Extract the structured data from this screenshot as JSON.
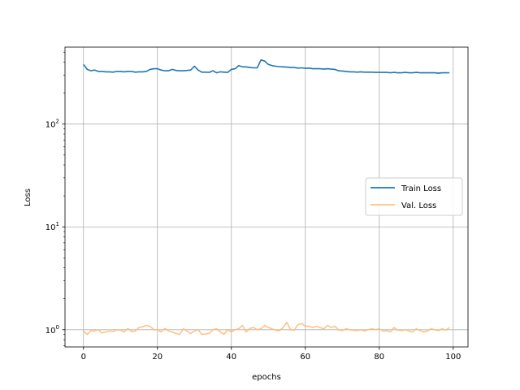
{
  "chart_data": {
    "type": "line",
    "title": "",
    "xlabel": "epochs",
    "ylabel": "Loss",
    "yscale": "log",
    "xlim": [
      -5,
      104
    ],
    "ylim": [
      0.68,
      560
    ],
    "grid": true,
    "legend_position": "center-right",
    "x_ticks": [
      0,
      20,
      40,
      60,
      80,
      100
    ],
    "x_tick_labels": [
      "0",
      "20",
      "40",
      "60",
      "80",
      "100"
    ],
    "y_ticks": [
      1,
      10,
      100
    ],
    "y_tick_labels": [
      {
        "base": "10",
        "exp": "0"
      },
      {
        "base": "10",
        "exp": "1"
      },
      {
        "base": "10",
        "exp": "2"
      }
    ],
    "series": [
      {
        "name": "Train Loss",
        "color": "#1f77b4",
        "opacity": 1,
        "values": [
          380,
          340,
          330,
          335,
          325,
          325,
          322,
          322,
          320,
          325,
          325,
          322,
          325,
          325,
          320,
          322,
          322,
          325,
          340,
          345,
          345,
          335,
          330,
          330,
          340,
          332,
          330,
          330,
          332,
          335,
          365,
          335,
          320,
          320,
          318,
          330,
          315,
          322,
          320,
          318,
          340,
          345,
          370,
          360,
          360,
          355,
          352,
          352,
          420,
          410,
          380,
          370,
          365,
          362,
          360,
          358,
          355,
          355,
          350,
          352,
          348,
          350,
          345,
          345,
          345,
          342,
          345,
          342,
          340,
          330,
          328,
          325,
          322,
          322,
          320,
          322,
          320,
          320,
          320,
          318,
          318,
          318,
          318,
          315,
          318,
          315,
          315,
          318,
          315,
          315,
          318,
          315,
          315,
          315,
          315,
          315,
          312,
          315,
          315,
          315
        ]
      },
      {
        "name": "Val. Loss",
        "color": "#ffbb78",
        "opacity": 0.9,
        "values": [
          0.97,
          0.9,
          0.98,
          0.97,
          1.0,
          0.93,
          0.95,
          0.97,
          0.96,
          1.0,
          0.99,
          0.95,
          1.03,
          0.96,
          0.97,
          1.05,
          1.07,
          1.1,
          1.08,
          1.0,
          1.0,
          0.95,
          1.03,
          0.97,
          0.95,
          0.92,
          0.9,
          1.02,
          0.97,
          0.92,
          0.97,
          1.0,
          0.9,
          0.91,
          0.92,
          1.0,
          1.02,
          0.95,
          0.9,
          1.0,
          0.95,
          1.0,
          1.02,
          1.1,
          0.95,
          1.03,
          1.05,
          1.0,
          1.02,
          1.1,
          1.05,
          1.02,
          0.99,
          0.98,
          1.05,
          1.18,
          1.0,
          0.99,
          1.12,
          1.15,
          1.08,
          1.08,
          1.05,
          1.08,
          1.05,
          1.02,
          1.1,
          1.05,
          1.08,
          1.0,
          0.98,
          1.02,
          1.0,
          0.99,
          0.98,
          1.0,
          0.97,
          1.0,
          1.02,
          1.0,
          1.02,
          0.97,
          0.98,
          0.95,
          1.05,
          0.99,
          0.98,
          1.0,
          0.97,
          0.95,
          1.02,
          0.98,
          0.95,
          0.97,
          1.02,
          1.0,
          0.98,
          1.02,
          0.99,
          1.05
        ]
      }
    ]
  }
}
